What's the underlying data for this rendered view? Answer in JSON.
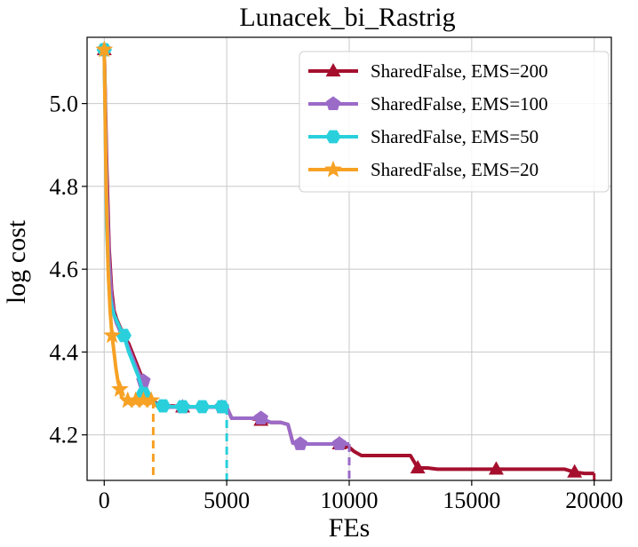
{
  "chart_data": {
    "type": "line",
    "title": "Lunacek_bi_Rastrig",
    "xlabel": "FEs",
    "ylabel": "log cost",
    "xlim": [
      -700,
      20700
    ],
    "ylim": [
      4.09,
      5.16
    ],
    "xticks": [
      0,
      5000,
      10000,
      15000,
      20000
    ],
    "xtick_labels": [
      "0",
      "5000",
      "10000",
      "15000",
      "20000"
    ],
    "yticks": [
      4.2,
      4.4,
      4.6,
      4.8,
      5.0
    ],
    "ytick_labels": [
      "4.2",
      "4.4",
      "4.6",
      "4.8",
      "5.0"
    ],
    "grid": true,
    "legend_position": "top-right",
    "series": [
      {
        "name": "SharedFalse, EMS=200",
        "color": "#a50f2d",
        "marker": "triangle",
        "end_fe": 20000,
        "x": [
          0,
          100,
          200,
          300,
          400,
          500,
          650,
          800,
          1000,
          1200,
          1400,
          1600,
          1800,
          2000,
          2200,
          2500,
          2800,
          3200,
          3600,
          4000,
          4500,
          5000,
          5200,
          5600,
          6000,
          6400,
          6800,
          7200,
          7500,
          7700,
          8000,
          8400,
          8800,
          9200,
          9600,
          10000,
          10200,
          10500,
          11000,
          11500,
          12000,
          12500,
          12800,
          13200,
          13600,
          14200,
          15000,
          16000,
          17000,
          18000,
          18800,
          19200,
          19600,
          20000
        ],
        "y": [
          5.13,
          4.85,
          4.65,
          4.55,
          4.5,
          4.48,
          4.46,
          4.44,
          4.42,
          4.39,
          4.36,
          4.33,
          4.3,
          4.28,
          4.275,
          4.27,
          4.27,
          4.267,
          4.267,
          4.267,
          4.267,
          4.267,
          4.24,
          4.24,
          4.24,
          4.235,
          4.23,
          4.23,
          4.225,
          4.18,
          4.178,
          4.178,
          4.178,
          4.178,
          4.178,
          4.17,
          4.16,
          4.15,
          4.15,
          4.15,
          4.15,
          4.15,
          4.12,
          4.12,
          4.117,
          4.117,
          4.117,
          4.117,
          4.117,
          4.117,
          4.117,
          4.11,
          4.107,
          4.107
        ],
        "marker_x": [
          0,
          3200,
          6400,
          9600,
          12800,
          16000,
          19200
        ]
      },
      {
        "name": "SharedFalse, EMS=100",
        "color": "#9b6bc8",
        "marker": "pentagon",
        "end_fe": 10000,
        "x": [
          0,
          100,
          200,
          300,
          400,
          500,
          650,
          800,
          1000,
          1200,
          1400,
          1600,
          1800,
          2000,
          2200,
          2500,
          2800,
          3200,
          3600,
          4000,
          4500,
          5000,
          5200,
          5600,
          6000,
          6400,
          6800,
          7200,
          7500,
          7700,
          8000,
          8400,
          8800,
          9200,
          9600,
          10000
        ],
        "y": [
          5.13,
          4.8,
          4.62,
          4.53,
          4.49,
          4.47,
          4.45,
          4.44,
          4.41,
          4.38,
          4.35,
          4.33,
          4.29,
          4.275,
          4.27,
          4.267,
          4.267,
          4.267,
          4.267,
          4.267,
          4.267,
          4.267,
          4.24,
          4.24,
          4.24,
          4.24,
          4.23,
          4.23,
          4.225,
          4.18,
          4.178,
          4.178,
          4.178,
          4.178,
          4.178,
          4.178
        ],
        "marker_x": [
          0,
          1600,
          3200,
          4800,
          6400,
          8000,
          9600
        ]
      },
      {
        "name": "SharedFalse, EMS=50",
        "color": "#29d0dc",
        "marker": "hexagon",
        "end_fe": 5000,
        "x": [
          0,
          100,
          200,
          300,
          400,
          550,
          700,
          800,
          1000,
          1200,
          1400,
          1600,
          1800,
          2000,
          2200,
          2500,
          2800,
          3200,
          3600,
          4000,
          4400,
          4800,
          5000
        ],
        "y": [
          5.13,
          4.7,
          4.55,
          4.51,
          4.49,
          4.47,
          4.45,
          4.44,
          4.4,
          4.37,
          4.34,
          4.3,
          4.29,
          4.28,
          4.27,
          4.27,
          4.268,
          4.268,
          4.268,
          4.268,
          4.268,
          4.268,
          4.268
        ],
        "marker_x": [
          0,
          800,
          1600,
          2400,
          3200,
          4000,
          4800
        ]
      },
      {
        "name": "SharedFalse, EMS=20",
        "color": "#f7a125",
        "marker": "star",
        "end_fe": 2000,
        "x": [
          0,
          80,
          160,
          240,
          320,
          400,
          480,
          560,
          640,
          720,
          800,
          960,
          1120,
          1280,
          1440,
          1600,
          1760,
          1920,
          2000
        ],
        "y": [
          5.13,
          4.8,
          4.6,
          4.5,
          4.44,
          4.4,
          4.36,
          4.33,
          4.31,
          4.29,
          4.285,
          4.283,
          4.283,
          4.283,
          4.283,
          4.283,
          4.283,
          4.283,
          4.283
        ],
        "marker_x": [
          0,
          320,
          640,
          960,
          1280,
          1600,
          1920
        ]
      }
    ]
  }
}
